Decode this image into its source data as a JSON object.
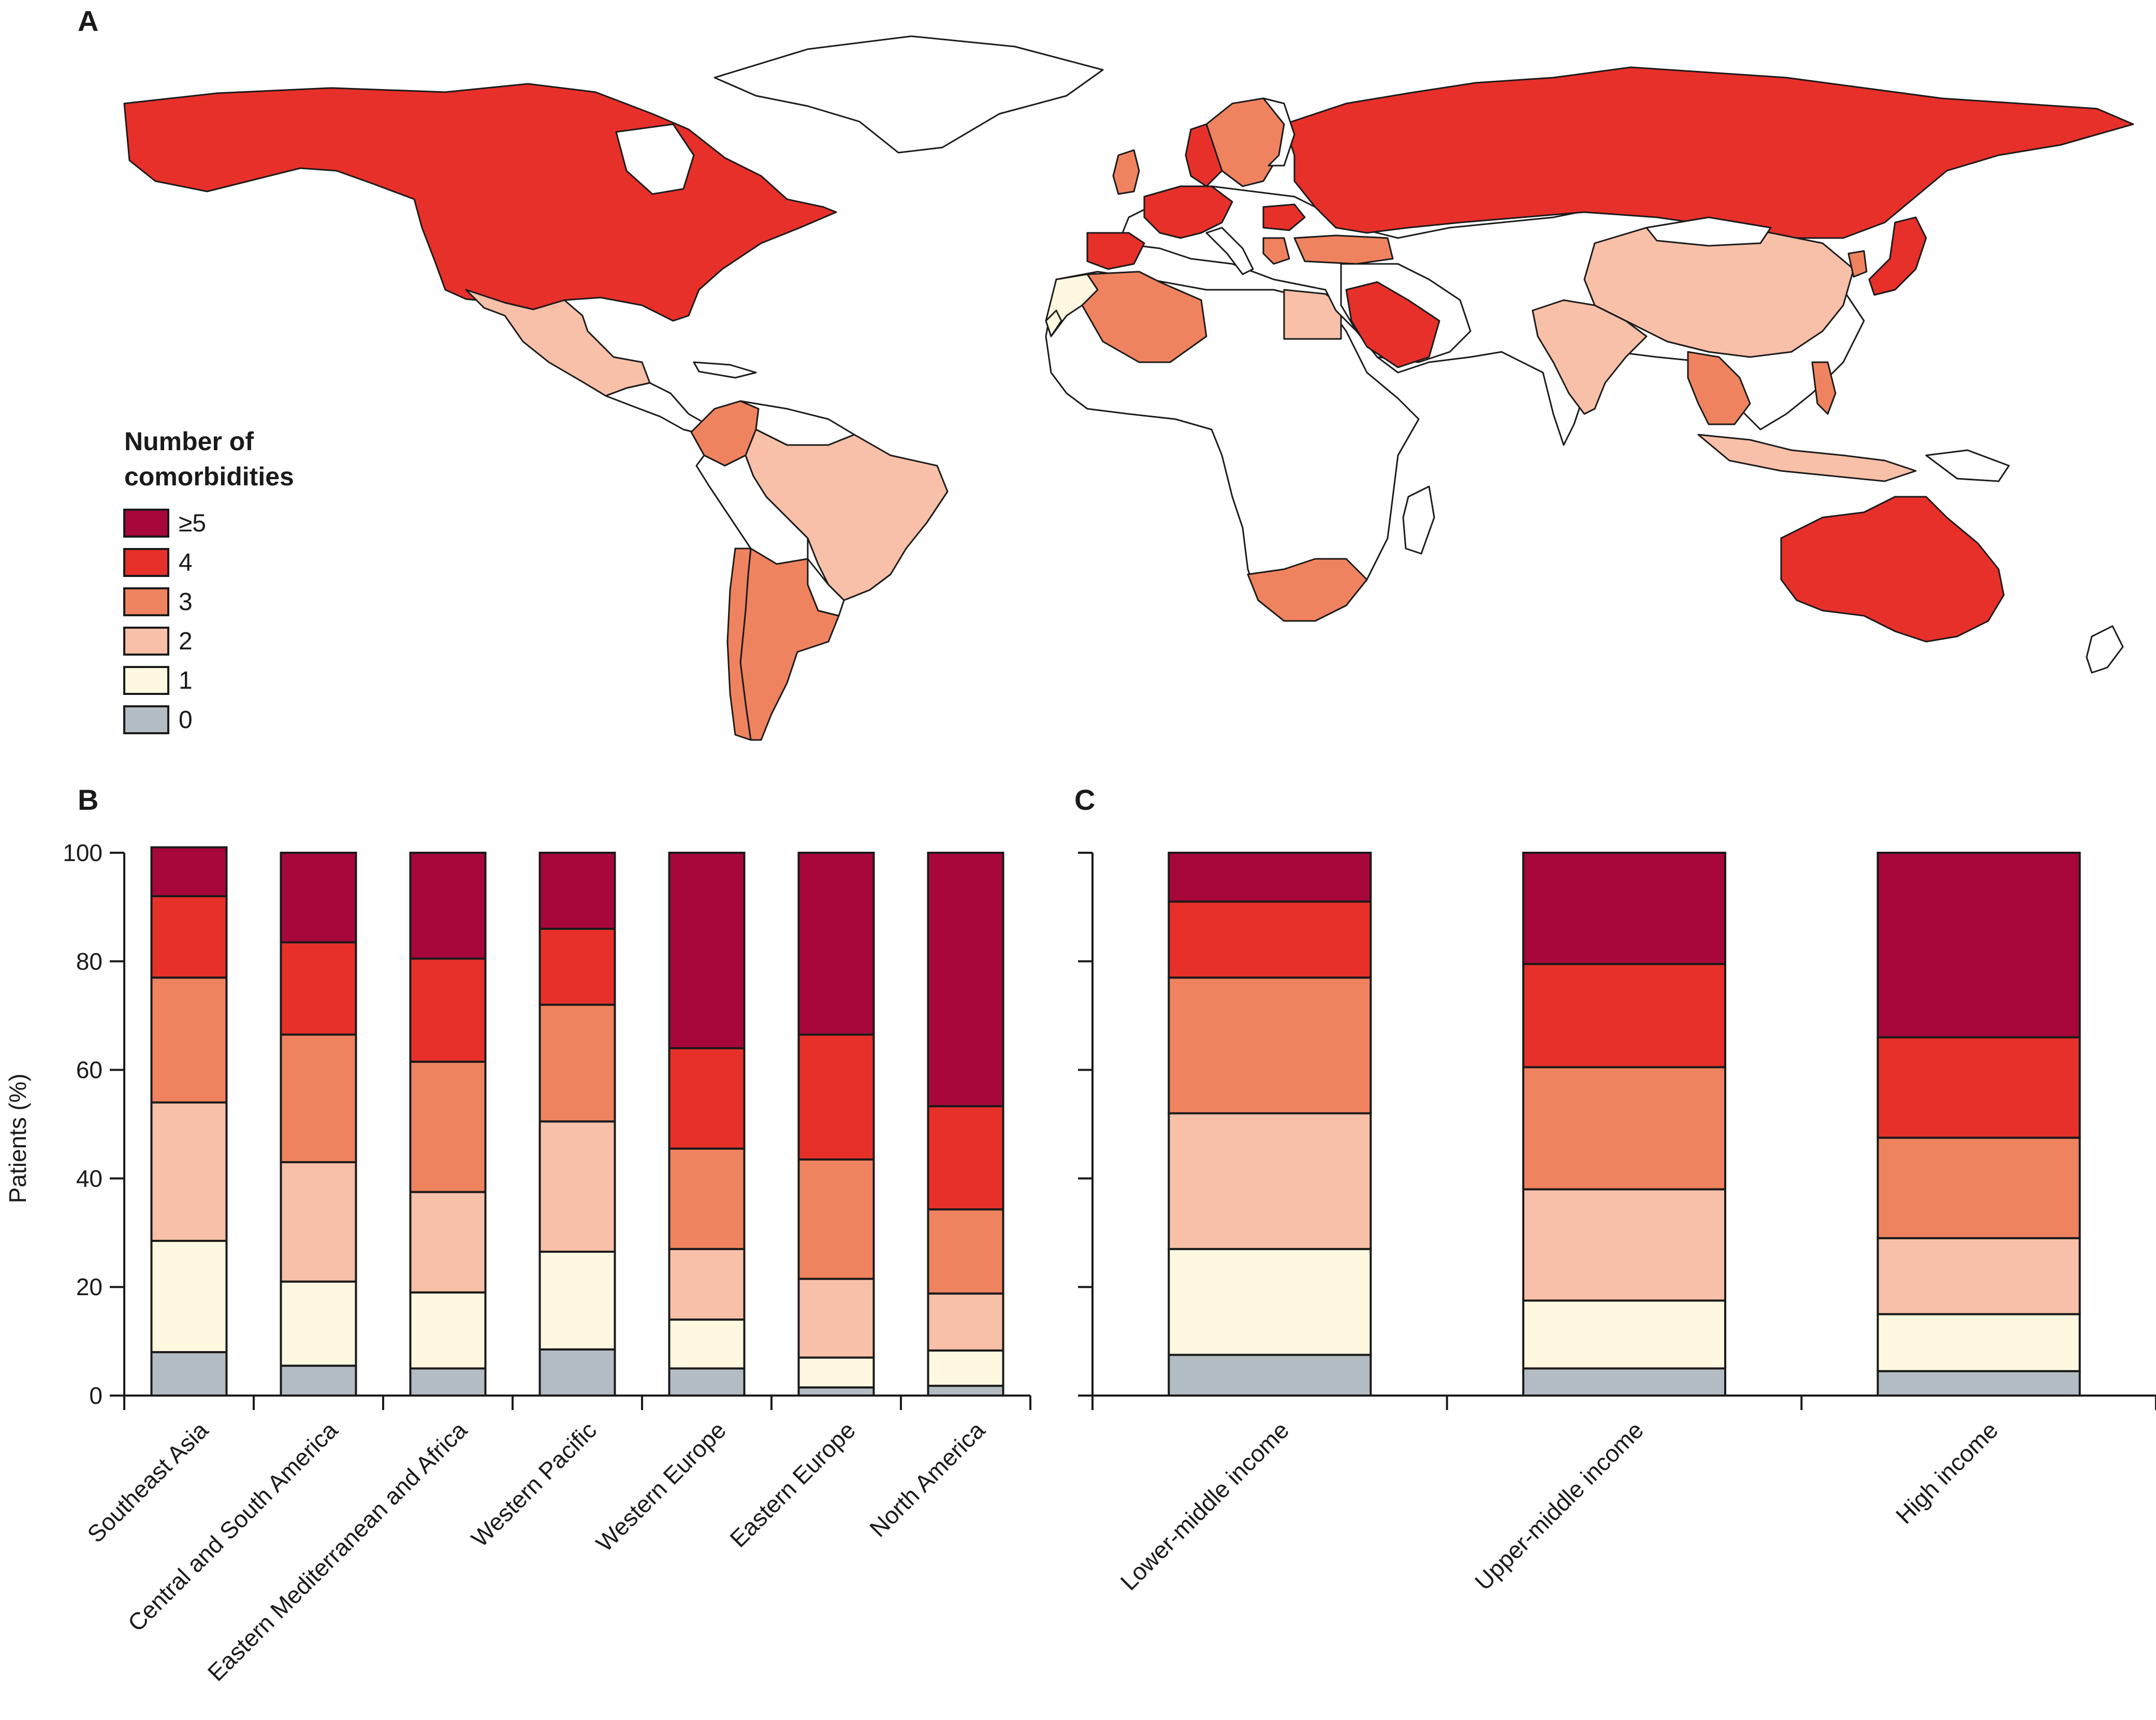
{
  "panels": {
    "a": "A",
    "b": "B",
    "c": "C"
  },
  "colors": {
    "c0": "#b4bcc3",
    "c1": "#fef8e0",
    "c2": "#f8c0a8",
    "c3": "#f0835f",
    "c4": "#e8302a",
    "c5": "#a8073b",
    "land_none": "#ffffff",
    "stroke": "#1a1a1a"
  },
  "map": {
    "legend_title_line1": "Number of",
    "legend_title_line2": "comorbidities",
    "legend": [
      {
        "label": "≥5",
        "color": "#a8073b"
      },
      {
        "label": "4",
        "color": "#e8302a"
      },
      {
        "label": "3",
        "color": "#f0835f"
      },
      {
        "label": "2",
        "color": "#f8c0a8"
      },
      {
        "label": "1",
        "color": "#fef8e0"
      },
      {
        "label": "0",
        "color": "#b4bcc3"
      }
    ]
  },
  "chart_data": [
    {
      "panel": "B",
      "type": "bar",
      "stacked": true,
      "ylabel": "Patients (%)",
      "ylim": [
        0,
        100
      ],
      "yticks": [
        0,
        20,
        40,
        60,
        80,
        100
      ],
      "categories": [
        "Southeast Asia",
        "Central and South America",
        "Eastern Mediterranean and Africa",
        "Western Pacific",
        "Western Europe",
        "Eastern Europe",
        "North America"
      ],
      "series": [
        {
          "name": "0",
          "color": "#b4bcc3",
          "values": [
            8,
            5.5,
            5,
            8.5,
            5,
            1.5,
            1.8
          ]
        },
        {
          "name": "1",
          "color": "#fef8e0",
          "values": [
            20.5,
            15.5,
            14,
            18,
            9,
            5.5,
            6.5
          ]
        },
        {
          "name": "2",
          "color": "#f8c0a8",
          "values": [
            25.5,
            22,
            18.5,
            24,
            13,
            14.5,
            10.5
          ]
        },
        {
          "name": "3",
          "color": "#f0835f",
          "values": [
            23,
            23.5,
            24,
            21.5,
            18.5,
            22,
            15.5
          ]
        },
        {
          "name": "4",
          "color": "#e8302a",
          "values": [
            15,
            17,
            19,
            14,
            18.5,
            23,
            19
          ]
        },
        {
          "name": "≥5",
          "color": "#a8073b",
          "values": [
            9,
            16.5,
            19.5,
            14,
            36,
            33.5,
            46.7
          ]
        }
      ]
    },
    {
      "panel": "C",
      "type": "bar",
      "stacked": true,
      "ylim": [
        0,
        100
      ],
      "yticks": [
        0,
        20,
        40,
        60,
        80,
        100
      ],
      "categories": [
        "Lower-middle income",
        "Upper-middle income",
        "High income"
      ],
      "series": [
        {
          "name": "0",
          "color": "#b4bcc3",
          "values": [
            7.5,
            5,
            4.5
          ]
        },
        {
          "name": "1",
          "color": "#fef8e0",
          "values": [
            19.5,
            12.5,
            10.5
          ]
        },
        {
          "name": "2",
          "color": "#f8c0a8",
          "values": [
            25,
            20.5,
            14
          ]
        },
        {
          "name": "3",
          "color": "#f0835f",
          "values": [
            25,
            22.5,
            18.5
          ]
        },
        {
          "name": "4",
          "color": "#e8302a",
          "values": [
            14,
            19,
            18.5
          ]
        },
        {
          "name": "≥5",
          "color": "#a8073b",
          "values": [
            9,
            20.5,
            34
          ]
        }
      ]
    }
  ]
}
